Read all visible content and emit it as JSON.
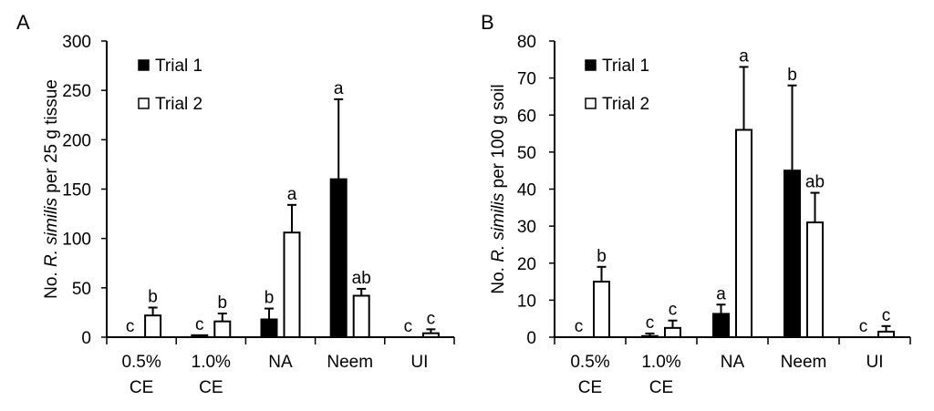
{
  "chart_data": [
    {
      "type": "bar",
      "panel_label": "A",
      "ylabel_prefix": "No. ",
      "ylabel_italic": "R. similis",
      "ylabel_suffix": " per 25 g tissue",
      "ylim": [
        0,
        300
      ],
      "yticks": [
        0,
        50,
        100,
        150,
        200,
        250,
        300
      ],
      "categories": [
        [
          "0.5%",
          "CE"
        ],
        [
          "1.0%",
          "CE"
        ],
        [
          "NA"
        ],
        [
          "Neem"
        ],
        [
          "UI"
        ]
      ],
      "legend": {
        "placement": "top-left"
      },
      "series": [
        {
          "name": "Trial 1",
          "fill": "#000000",
          "values": [
            0,
            2,
            18,
            160,
            0
          ],
          "errors": [
            0,
            0,
            11,
            81,
            0
          ],
          "letters": [
            "c",
            "c",
            "b",
            "a",
            "c"
          ]
        },
        {
          "name": "Trial 2",
          "fill": "#ffffff",
          "values": [
            22,
            16,
            106,
            42,
            4
          ],
          "errors": [
            8,
            8,
            28,
            7,
            4
          ],
          "letters": [
            "b",
            "b",
            "a",
            "ab",
            "c"
          ]
        }
      ]
    },
    {
      "type": "bar",
      "panel_label": "B",
      "ylabel_prefix": "No. ",
      "ylabel_italic": "R. similis",
      "ylabel_suffix": " per 100 g soil",
      "ylim": [
        0,
        80
      ],
      "yticks": [
        0,
        10,
        20,
        30,
        40,
        50,
        60,
        70,
        80
      ],
      "categories": [
        [
          "0.5%",
          "CE"
        ],
        [
          "1.0%",
          "CE"
        ],
        [
          "NA"
        ],
        [
          "Neem"
        ],
        [
          "UI"
        ]
      ],
      "legend": {
        "placement": "top-left"
      },
      "series": [
        {
          "name": "Trial 1",
          "fill": "#000000",
          "values": [
            0,
            0.3,
            6.3,
            45,
            0
          ],
          "errors": [
            0,
            0.7,
            2.5,
            23,
            0
          ],
          "letters": [
            "c",
            "c",
            "a",
            "b",
            "c"
          ]
        },
        {
          "name": "Trial 2",
          "fill": "#ffffff",
          "values": [
            15,
            2.5,
            56,
            31,
            1.5
          ],
          "errors": [
            4,
            2,
            17,
            8,
            1.5
          ],
          "letters": [
            "b",
            "c",
            "a",
            "ab",
            "c"
          ]
        }
      ]
    }
  ]
}
